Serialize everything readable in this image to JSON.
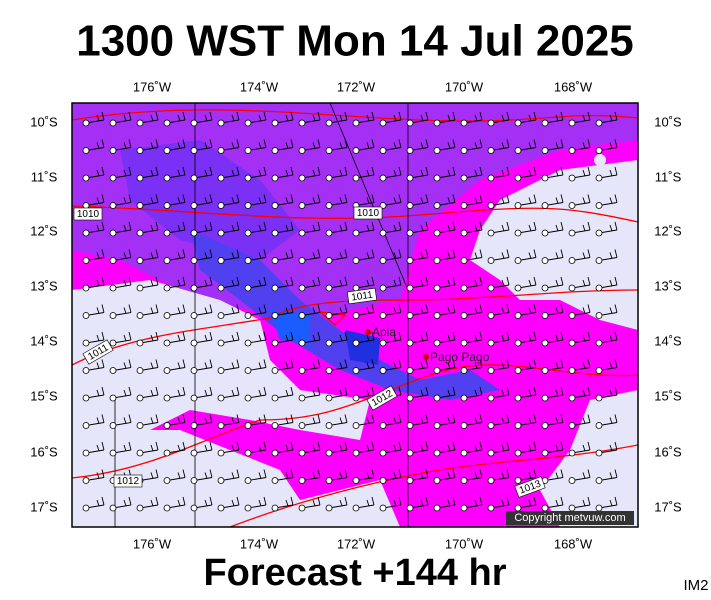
{
  "header": {
    "title": "1300 WST Mon 14 Jul 2025",
    "subtitle": "Forecast +144 hr",
    "tag": "IM2"
  },
  "map": {
    "lon_labels": [
      "176˚W",
      "174˚W",
      "172˚W",
      "170˚W",
      "168˚W"
    ],
    "lat_labels": [
      "10˚S",
      "11˚S",
      "12˚S",
      "13˚S",
      "14˚S",
      "15˚S",
      "16˚S",
      "17˚S"
    ],
    "places": [
      "Apia",
      "Pago Pago"
    ],
    "isobar_labels": [
      "1010",
      "1010",
      "1011",
      "1011",
      "1012",
      "1012",
      "1013"
    ],
    "copyright": "Copyright metvuw.com"
  }
}
